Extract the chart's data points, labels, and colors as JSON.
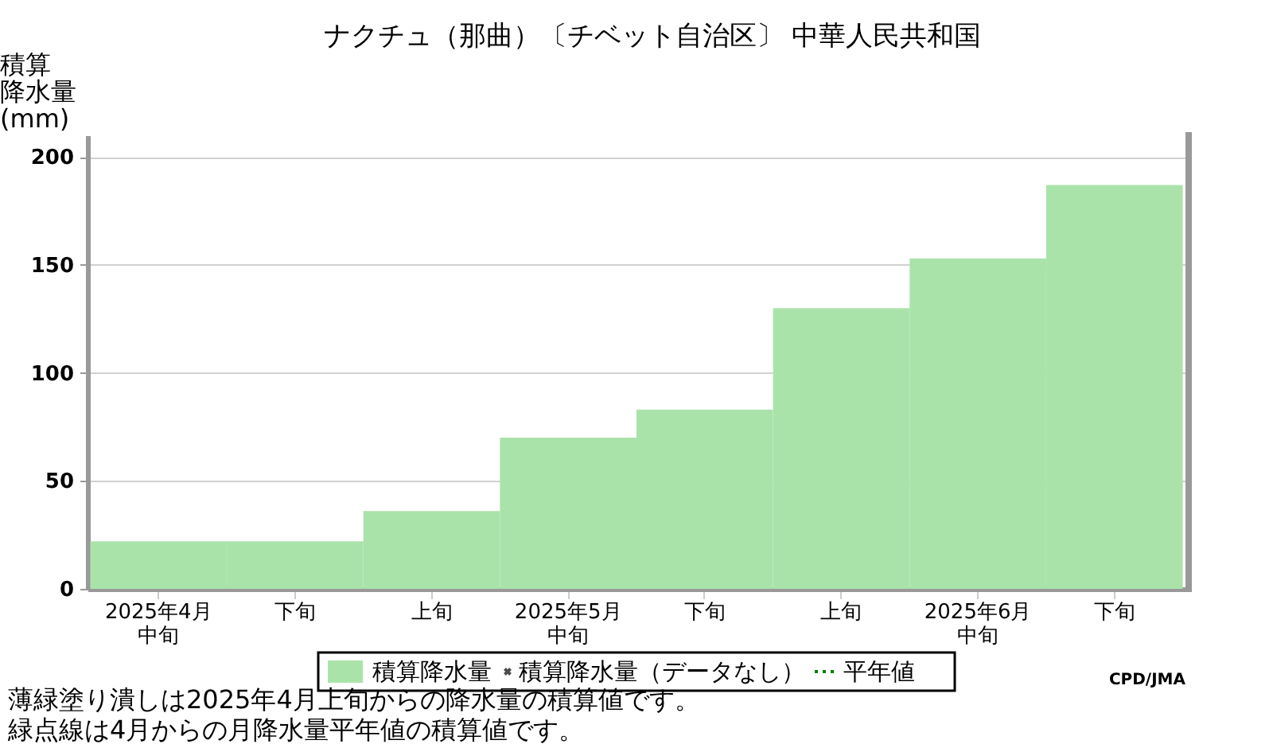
{
  "chart_data": {
    "type": "bar",
    "title": "ナクチュ（那曲）〔チベット自治区〕 中華人民共和国",
    "ylabel": "積算降水量(mm)",
    "categories": [
      "2025年4月中旬",
      "下旬",
      "上旬",
      "2025年5月中旬",
      "下旬",
      "上旬",
      "2025年6月中旬",
      "下旬"
    ],
    "series": [
      {
        "name": "積算降水量",
        "color": "#aae3aa",
        "values": [
          22,
          22,
          36,
          70,
          83,
          130,
          153,
          187
        ]
      },
      {
        "name": "積算降水量（データなし）",
        "type": "scatter",
        "marker": "cross",
        "color": "#000000",
        "values": [
          null,
          null,
          null,
          null,
          null,
          null,
          null,
          null
        ]
      },
      {
        "name": "平年値",
        "type": "line",
        "line_style": "dotted",
        "color": "#008000",
        "values": [
          null,
          null,
          null,
          null,
          null,
          null,
          null,
          null
        ]
      }
    ],
    "ylim": [
      0,
      210
    ],
    "yticks": [
      0,
      50,
      100,
      150,
      200
    ],
    "grid": "y",
    "legend": "bottom",
    "annotations": [
      "CPD/JMA",
      "薄緑塗り潰しは2025年4月上旬からの降水量の積算値です。",
      "緑点線は4月からの月降水量平年値の積算値です。"
    ]
  }
}
